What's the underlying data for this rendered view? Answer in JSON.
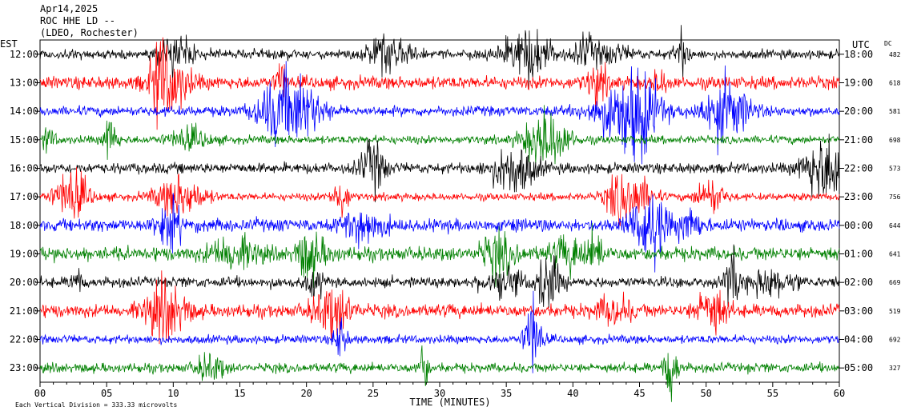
{
  "header": {
    "date": "Apr14,2025",
    "station": "ROC HHE LD --",
    "network": "(LDEO, Rochester)"
  },
  "chart_data": {
    "type": "line",
    "title": "",
    "left_axis_label": "EST",
    "right_axis_label": "UTC",
    "dc_label": "DC",
    "xlabel": "TIME (MINUTES)",
    "xlim": [
      0,
      60
    ],
    "x_ticks": [
      "00",
      "05",
      "10",
      "15",
      "20",
      "25",
      "30",
      "35",
      "40",
      "45",
      "50",
      "55",
      "60"
    ],
    "footer_note": "Each Vertical Division = 333.33 microvolts",
    "trace_colors": [
      "#000000",
      "#ff0000",
      "#0000ff",
      "#008000"
    ],
    "traces": [
      {
        "est": "12:00",
        "utc": "18:00",
        "dc": "482",
        "color": "#000000"
      },
      {
        "est": "13:00",
        "utc": "19:00",
        "dc": "618",
        "color": "#ff0000"
      },
      {
        "est": "14:00",
        "utc": "20:00",
        "dc": "581",
        "color": "#0000ff"
      },
      {
        "est": "15:00",
        "utc": "21:00",
        "dc": "698",
        "color": "#008000"
      },
      {
        "est": "16:00",
        "utc": "22:00",
        "dc": "573",
        "color": "#000000"
      },
      {
        "est": "17:00",
        "utc": "23:00",
        "dc": "756",
        "color": "#ff0000"
      },
      {
        "est": "18:00",
        "utc": "00:00",
        "dc": "644",
        "color": "#0000ff"
      },
      {
        "est": "19:00",
        "utc": "01:00",
        "dc": "641",
        "color": "#008000"
      },
      {
        "est": "20:00",
        "utc": "02:00",
        "dc": "669",
        "color": "#000000"
      },
      {
        "est": "21:00",
        "utc": "03:00",
        "dc": "519",
        "color": "#ff0000"
      },
      {
        "est": "22:00",
        "utc": "04:00",
        "dc": "692",
        "color": "#0000ff"
      },
      {
        "est": "23:00",
        "utc": "05:00",
        "dc": "327",
        "color": "#008000"
      }
    ]
  }
}
